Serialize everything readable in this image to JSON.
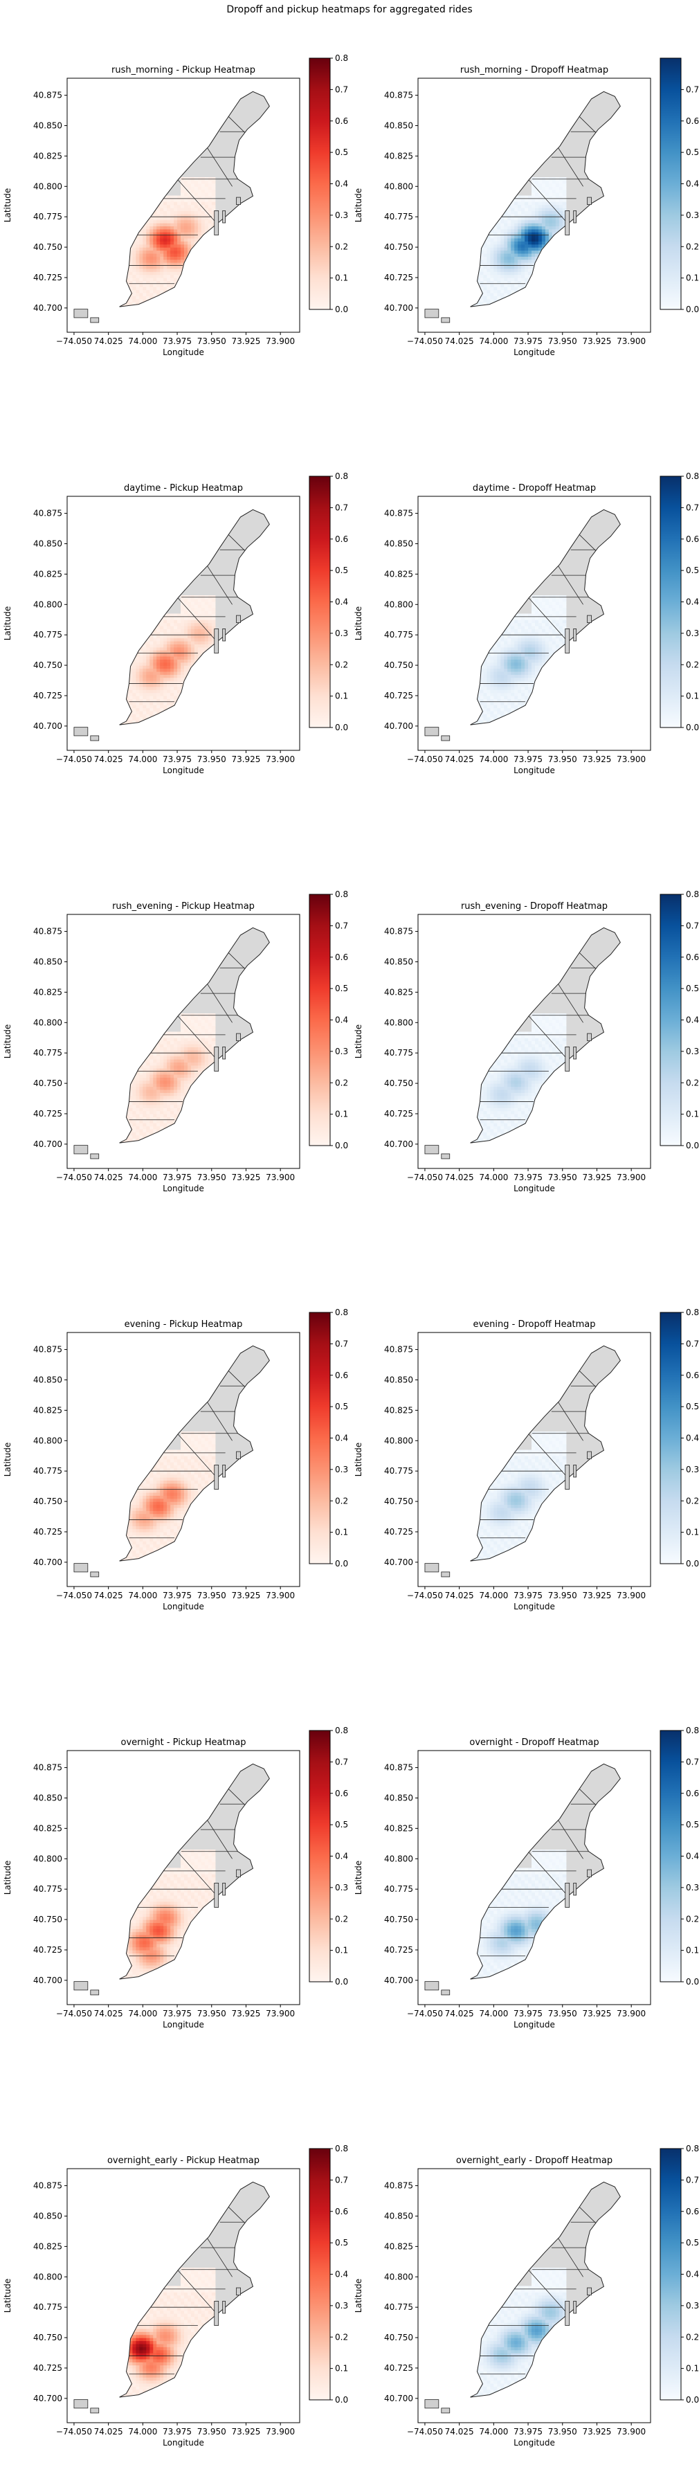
{
  "figure": {
    "suptitle": "Dropoff and pickup heatmaps for aggregated rides"
  },
  "chart_data": [
    {
      "type": "heatmap",
      "title": "rush_morning - Pickup Heatmap",
      "xlabel": "Longitude",
      "ylabel": "Latitude",
      "cmap": "Reds",
      "x_ticks": [
        "−74.050",
        "74.025",
        "74.000",
        "73.975",
        "73.950",
        "73.925",
        "73.900"
      ],
      "y_ticks": [
        "40.700",
        "40.725",
        "40.750",
        "40.775",
        "40.800",
        "40.825",
        "40.850",
        "40.875"
      ],
      "colorbar": {
        "ticks": [
          "0.0",
          "0.1",
          "0.2",
          "0.3",
          "0.4",
          "0.5",
          "0.6",
          "0.7",
          "0.8"
        ],
        "range": [
          0,
          0.8
        ]
      },
      "hotspots": [
        {
          "lon": -73.985,
          "lat": 40.755,
          "value": 0.55
        },
        {
          "lon": -73.978,
          "lat": 40.745,
          "value": 0.45
        },
        {
          "lon": -73.995,
          "lat": 40.74,
          "value": 0.3
        },
        {
          "lon": -73.97,
          "lat": 40.765,
          "value": 0.25
        }
      ]
    },
    {
      "type": "heatmap",
      "title": "rush_morning - Dropoff Heatmap",
      "xlabel": "Longitude",
      "ylabel": "Latitude",
      "cmap": "Blues",
      "x_ticks": [
        "−74.050",
        "74.025",
        "74.000",
        "73.975",
        "73.950",
        "73.925",
        "73.900"
      ],
      "y_ticks": [
        "40.700",
        "40.725",
        "40.750",
        "40.775",
        "40.800",
        "40.825",
        "40.850",
        "40.875"
      ],
      "colorbar": {
        "ticks": [
          "0.0",
          "0.1",
          "0.2",
          "0.3",
          "0.4",
          "0.5",
          "0.6",
          "0.7"
        ],
        "range": [
          0,
          0.8
        ]
      },
      "hotspots": [
        {
          "lon": -73.972,
          "lat": 40.756,
          "value": 0.8
        },
        {
          "lon": -73.98,
          "lat": 40.75,
          "value": 0.6
        },
        {
          "lon": -73.99,
          "lat": 40.74,
          "value": 0.35
        },
        {
          "lon": -73.96,
          "lat": 40.77,
          "value": 0.3
        }
      ]
    },
    {
      "type": "heatmap",
      "title": "daytime - Pickup Heatmap",
      "xlabel": "Longitude",
      "ylabel": "Latitude",
      "cmap": "Reds",
      "x_ticks": [
        "−74.050",
        "74.025",
        "74.000",
        "73.975",
        "73.950",
        "73.925",
        "73.900"
      ],
      "y_ticks": [
        "40.700",
        "40.725",
        "40.750",
        "40.775",
        "40.800",
        "40.825",
        "40.850",
        "40.875"
      ],
      "colorbar": {
        "ticks": [
          "0.0",
          "0.1",
          "0.2",
          "0.3",
          "0.4",
          "0.5",
          "0.6",
          "0.7",
          "0.8"
        ],
        "range": [
          0,
          0.8
        ]
      },
      "hotspots": [
        {
          "lon": -73.985,
          "lat": 40.75,
          "value": 0.4
        },
        {
          "lon": -73.975,
          "lat": 40.76,
          "value": 0.3
        },
        {
          "lon": -73.995,
          "lat": 40.74,
          "value": 0.25
        },
        {
          "lon": -73.96,
          "lat": 40.775,
          "value": 0.2
        }
      ]
    },
    {
      "type": "heatmap",
      "title": "daytime - Dropoff Heatmap",
      "xlabel": "Longitude",
      "ylabel": "Latitude",
      "cmap": "Blues",
      "x_ticks": [
        "−74.050",
        "74.025",
        "74.000",
        "73.975",
        "73.950",
        "73.925",
        "73.900"
      ],
      "y_ticks": [
        "40.700",
        "40.725",
        "40.750",
        "40.775",
        "40.800",
        "40.825",
        "40.850",
        "40.875"
      ],
      "colorbar": {
        "ticks": [
          "0.0",
          "0.1",
          "0.2",
          "0.3",
          "0.4",
          "0.5",
          "0.6",
          "0.7",
          "0.8"
        ],
        "range": [
          0,
          0.8
        ]
      },
      "hotspots": [
        {
          "lon": -73.985,
          "lat": 40.75,
          "value": 0.35
        },
        {
          "lon": -73.975,
          "lat": 40.76,
          "value": 0.25
        },
        {
          "lon": -73.995,
          "lat": 40.74,
          "value": 0.2
        }
      ]
    },
    {
      "type": "heatmap",
      "title": "rush_evening - Pickup Heatmap",
      "xlabel": "Longitude",
      "ylabel": "Latitude",
      "cmap": "Reds",
      "x_ticks": [
        "−74.050",
        "74.025",
        "74.000",
        "73.975",
        "73.950",
        "73.925",
        "73.900"
      ],
      "y_ticks": [
        "40.700",
        "40.725",
        "40.750",
        "40.775",
        "40.800",
        "40.825",
        "40.850",
        "40.875"
      ],
      "colorbar": {
        "ticks": [
          "0.0",
          "0.1",
          "0.2",
          "0.3",
          "0.4",
          "0.5",
          "0.6",
          "0.7",
          "0.8"
        ],
        "range": [
          0,
          0.8
        ]
      },
      "hotspots": [
        {
          "lon": -73.985,
          "lat": 40.75,
          "value": 0.3
        },
        {
          "lon": -73.975,
          "lat": 40.762,
          "value": 0.25
        },
        {
          "lon": -73.995,
          "lat": 40.742,
          "value": 0.2
        },
        {
          "lon": -73.965,
          "lat": 40.77,
          "value": 0.2
        }
      ]
    },
    {
      "type": "heatmap",
      "title": "rush_evening - Dropoff Heatmap",
      "xlabel": "Longitude",
      "ylabel": "Latitude",
      "cmap": "Blues",
      "x_ticks": [
        "−74.050",
        "74.025",
        "74.000",
        "73.975",
        "73.950",
        "73.925",
        "73.900"
      ],
      "y_ticks": [
        "40.700",
        "40.725",
        "40.750",
        "40.775",
        "40.800",
        "40.825",
        "40.850",
        "40.875"
      ],
      "colorbar": {
        "ticks": [
          "0.0",
          "0.1",
          "0.2",
          "0.3",
          "0.4",
          "0.5",
          "0.6",
          "0.7",
          "0.8"
        ],
        "range": [
          0,
          0.8
        ]
      },
      "hotspots": [
        {
          "lon": -73.985,
          "lat": 40.75,
          "value": 0.25
        },
        {
          "lon": -73.975,
          "lat": 40.76,
          "value": 0.2
        },
        {
          "lon": -73.995,
          "lat": 40.74,
          "value": 0.2
        }
      ]
    },
    {
      "type": "heatmap",
      "title": "evening - Pickup Heatmap",
      "xlabel": "Longitude",
      "ylabel": "Latitude",
      "cmap": "Reds",
      "x_ticks": [
        "−74.050",
        "74.025",
        "74.000",
        "73.975",
        "73.950",
        "73.925",
        "73.900"
      ],
      "y_ticks": [
        "40.700",
        "40.725",
        "40.750",
        "40.775",
        "40.800",
        "40.825",
        "40.850",
        "40.875"
      ],
      "colorbar": {
        "ticks": [
          "0.0",
          "0.1",
          "0.2",
          "0.3",
          "0.4",
          "0.5",
          "0.6",
          "0.7",
          "0.8"
        ],
        "range": [
          0,
          0.8
        ]
      },
      "hotspots": [
        {
          "lon": -73.99,
          "lat": 40.745,
          "value": 0.4
        },
        {
          "lon": -73.98,
          "lat": 40.755,
          "value": 0.35
        },
        {
          "lon": -74.0,
          "lat": 40.735,
          "value": 0.25
        }
      ]
    },
    {
      "type": "heatmap",
      "title": "evening - Dropoff Heatmap",
      "xlabel": "Longitude",
      "ylabel": "Latitude",
      "cmap": "Blues",
      "x_ticks": [
        "−74.050",
        "74.025",
        "74.000",
        "73.975",
        "73.950",
        "73.925",
        "73.900"
      ],
      "y_ticks": [
        "40.700",
        "40.725",
        "40.750",
        "40.775",
        "40.800",
        "40.825",
        "40.850",
        "40.875"
      ],
      "colorbar": {
        "ticks": [
          "0.0",
          "0.1",
          "0.2",
          "0.3",
          "0.4",
          "0.5",
          "0.6",
          "0.7",
          "0.8"
        ],
        "range": [
          0,
          0.8
        ]
      },
      "hotspots": [
        {
          "lon": -73.985,
          "lat": 40.75,
          "value": 0.3
        },
        {
          "lon": -73.975,
          "lat": 40.76,
          "value": 0.2
        },
        {
          "lon": -73.995,
          "lat": 40.74,
          "value": 0.2
        }
      ]
    },
    {
      "type": "heatmap",
      "title": "overnight - Pickup Heatmap",
      "xlabel": "Longitude",
      "ylabel": "Latitude",
      "cmap": "Reds",
      "x_ticks": [
        "−74.050",
        "74.025",
        "74.000",
        "73.975",
        "73.950",
        "73.925",
        "73.900"
      ],
      "y_ticks": [
        "40.700",
        "40.725",
        "40.750",
        "40.775",
        "40.800",
        "40.825",
        "40.850",
        "40.875"
      ],
      "colorbar": {
        "ticks": [
          "0.0",
          "0.1",
          "0.2",
          "0.3",
          "0.4",
          "0.5",
          "0.6",
          "0.7",
          "0.8"
        ],
        "range": [
          0,
          0.8
        ]
      },
      "hotspots": [
        {
          "lon": -73.99,
          "lat": 40.74,
          "value": 0.45
        },
        {
          "lon": -74.0,
          "lat": 40.73,
          "value": 0.4
        },
        {
          "lon": -73.985,
          "lat": 40.75,
          "value": 0.35
        },
        {
          "lon": -73.995,
          "lat": 40.72,
          "value": 0.3
        }
      ]
    },
    {
      "type": "heatmap",
      "title": "overnight - Dropoff Heatmap",
      "xlabel": "Longitude",
      "ylabel": "Latitude",
      "cmap": "Blues",
      "x_ticks": [
        "−74.050",
        "74.025",
        "74.000",
        "73.975",
        "73.950",
        "73.925",
        "73.900"
      ],
      "y_ticks": [
        "40.700",
        "40.725",
        "40.750",
        "40.775",
        "40.800",
        "40.825",
        "40.850",
        "40.875"
      ],
      "colorbar": {
        "ticks": [
          "0.0",
          "0.1",
          "0.2",
          "0.3",
          "0.4",
          "0.5",
          "0.6",
          "0.7",
          "0.8"
        ],
        "range": [
          0,
          0.8
        ]
      },
      "hotspots": [
        {
          "lon": -73.985,
          "lat": 40.74,
          "value": 0.45
        },
        {
          "lon": -73.97,
          "lat": 40.745,
          "value": 0.35
        },
        {
          "lon": -73.995,
          "lat": 40.73,
          "value": 0.25
        }
      ]
    },
    {
      "type": "heatmap",
      "title": "overnight_early - Pickup Heatmap",
      "xlabel": "Longitude",
      "ylabel": "Latitude",
      "cmap": "Reds",
      "x_ticks": [
        "−74.050",
        "74.025",
        "74.000",
        "73.975",
        "73.950",
        "73.925",
        "73.900"
      ],
      "y_ticks": [
        "40.700",
        "40.725",
        "40.750",
        "40.775",
        "40.800",
        "40.825",
        "40.850",
        "40.875"
      ],
      "colorbar": {
        "ticks": [
          "0.0",
          "0.1",
          "0.2",
          "0.3",
          "0.4",
          "0.5",
          "0.6",
          "0.7",
          "0.8"
        ],
        "range": [
          0,
          0.8
        ]
      },
      "hotspots": [
        {
          "lon": -74.002,
          "lat": 40.74,
          "value": 0.75
        },
        {
          "lon": -73.99,
          "lat": 40.735,
          "value": 0.45
        },
        {
          "lon": -73.985,
          "lat": 40.75,
          "value": 0.3
        },
        {
          "lon": -73.995,
          "lat": 40.725,
          "value": 0.35
        }
      ]
    },
    {
      "type": "heatmap",
      "title": "overnight_early - Dropoff Heatmap",
      "xlabel": "Longitude",
      "ylabel": "Latitude",
      "cmap": "Blues",
      "x_ticks": [
        "−74.050",
        "74.025",
        "74.000",
        "73.975",
        "73.950",
        "73.925",
        "73.900"
      ],
      "y_ticks": [
        "40.700",
        "40.725",
        "40.750",
        "40.775",
        "40.800",
        "40.825",
        "40.850",
        "40.875"
      ],
      "colorbar": {
        "ticks": [
          "0.0",
          "0.1",
          "0.2",
          "0.3",
          "0.4",
          "0.5",
          "0.6",
          "0.7",
          "0.8"
        ],
        "range": [
          0,
          0.8
        ]
      },
      "hotspots": [
        {
          "lon": -73.97,
          "lat": 40.755,
          "value": 0.45
        },
        {
          "lon": -73.985,
          "lat": 40.745,
          "value": 0.4
        },
        {
          "lon": -73.995,
          "lat": 40.735,
          "value": 0.3
        },
        {
          "lon": -73.96,
          "lat": 40.77,
          "value": 0.3
        }
      ]
    }
  ]
}
